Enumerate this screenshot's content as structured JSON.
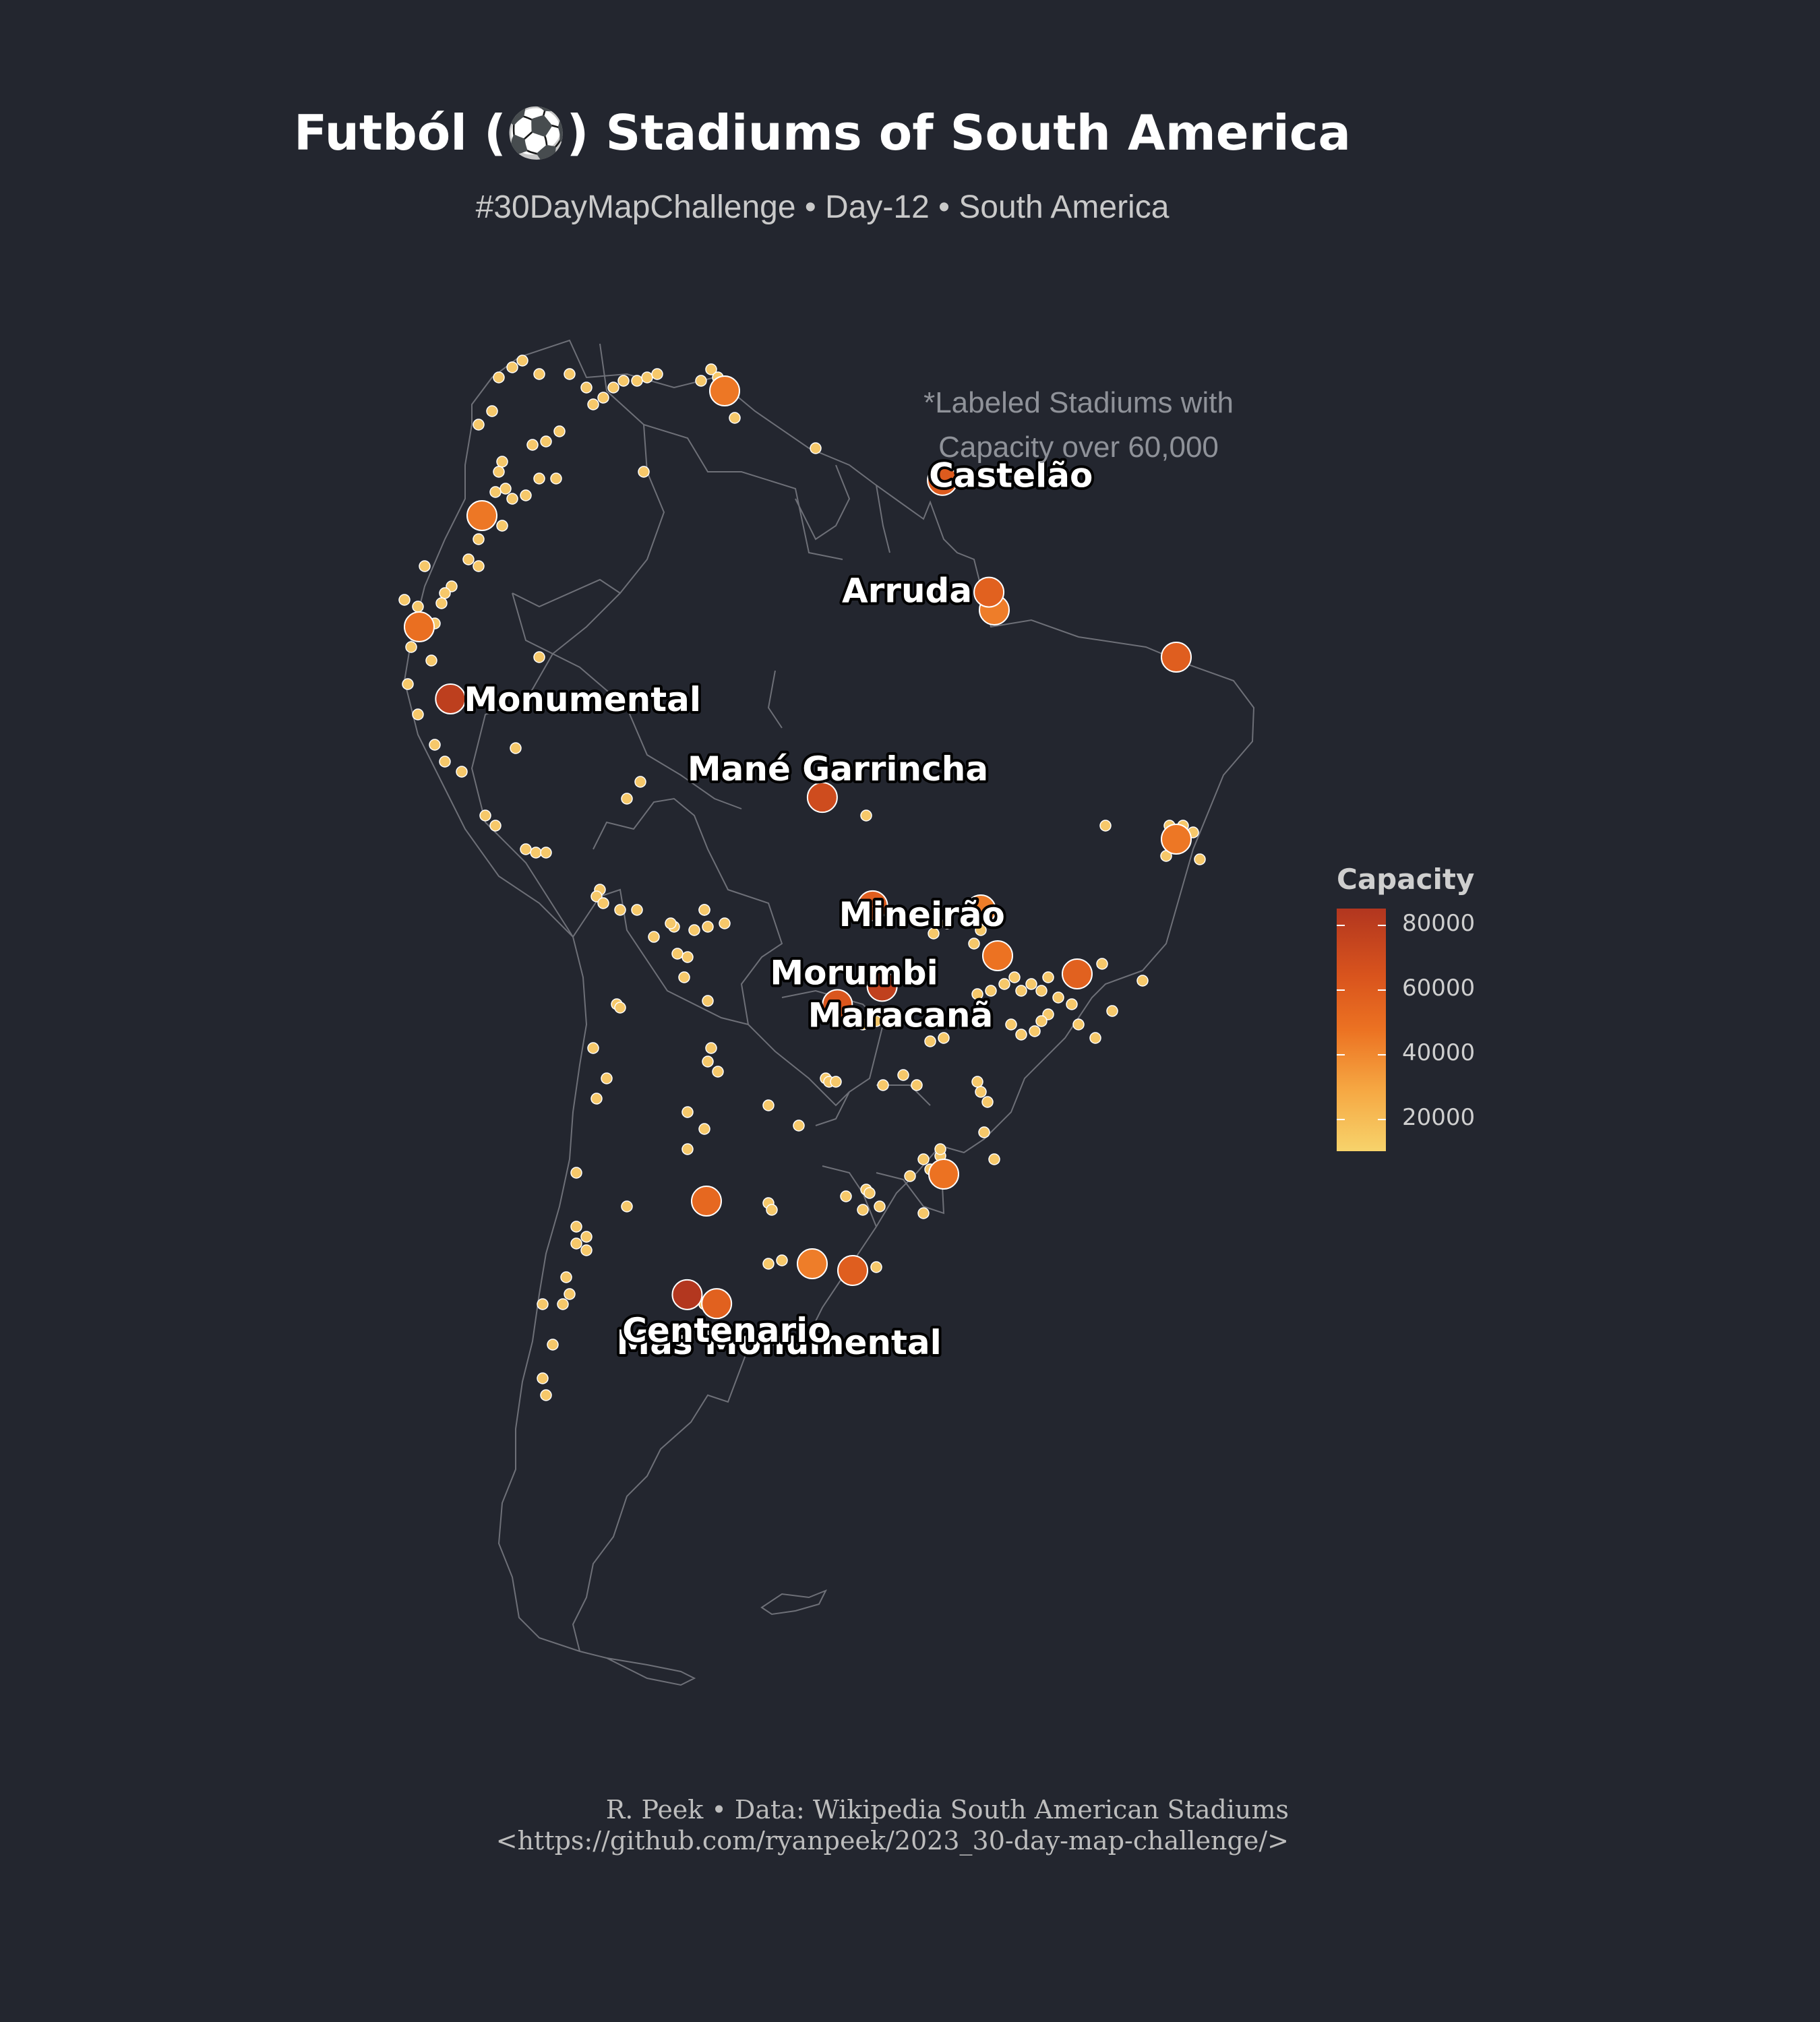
{
  "title": "Futból (⚽) Stadiums of South America",
  "subtitle": "#30DayMapChallenge • Day-12 • South America",
  "note_lines": [
    "*Labeled Stadiums with",
    "Capacity over 60,000"
  ],
  "caption_lines": [
    "R. Peek • Data: Wikipedia South American Stadiums",
    "<https://github.com/ryanpeek/2023_30-day-map-challenge/>"
  ],
  "legend": {
    "title": "Capacity",
    "ticks": [
      "80000",
      "60000",
      "40000",
      "20000"
    ],
    "color_stops": [
      "#f7d36b",
      "#f6a843",
      "#ec7222",
      "#d9541d",
      "#b2361f"
    ]
  },
  "colors": {
    "background": "#23262f",
    "border": "#6e7078",
    "point_outline": "#ffffff"
  },
  "labeled_stadiums": [
    {
      "name": "Morumbi",
      "lon": -46.72,
      "lat": -23.6,
      "capacity": 66795
    },
    {
      "name": "Castelão",
      "lon": -38.52,
      "lat": -3.81,
      "capacity": 63903
    },
    {
      "name": "Arruda",
      "lon": -34.89,
      "lat": -8.03,
      "capacity": 60044
    },
    {
      "name": "Monumental",
      "lon": -76.93,
      "lat": -12.06,
      "capacity": 80093
    },
    {
      "name": "Mané Garrincha",
      "lon": -47.9,
      "lat": -15.78,
      "capacity": 72788
    },
    {
      "name": "Mineirão",
      "lon": -43.97,
      "lat": -19.87,
      "capacity": 61927
    },
    {
      "name": "Maracanã",
      "lon": -43.23,
      "lat": -22.91,
      "capacity": 78838
    },
    {
      "name": "Más Monumental",
      "lon": -58.45,
      "lat": -34.55,
      "capacity": 84567
    },
    {
      "name": "Centenario",
      "lon": -56.15,
      "lat": -34.89,
      "capacity": 60235
    }
  ]
}
